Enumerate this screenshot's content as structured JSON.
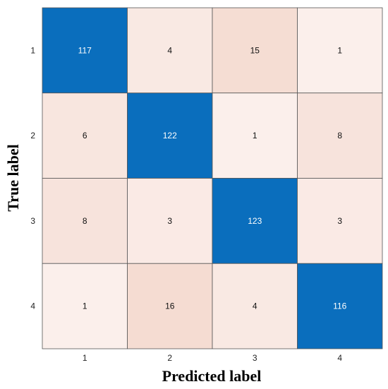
{
  "chart_data": {
    "type": "heatmap",
    "xlabel": "Predicted label",
    "ylabel": "True label",
    "x_categories": [
      "1",
      "2",
      "3",
      "4"
    ],
    "y_categories": [
      "1",
      "2",
      "3",
      "4"
    ],
    "values": [
      [
        117,
        4,
        15,
        1
      ],
      [
        6,
        122,
        1,
        8
      ],
      [
        8,
        3,
        123,
        3
      ],
      [
        1,
        16,
        4,
        116
      ]
    ],
    "colors": {
      "diagonal": "#0a6ebd",
      "off_diagonal_low": "#fdf5f3",
      "off_diagonal_high": "#f5dcd2",
      "text_on_diagonal": "#ffffff",
      "text_off_diagonal": "#111111",
      "cell_border": "#555555"
    }
  }
}
